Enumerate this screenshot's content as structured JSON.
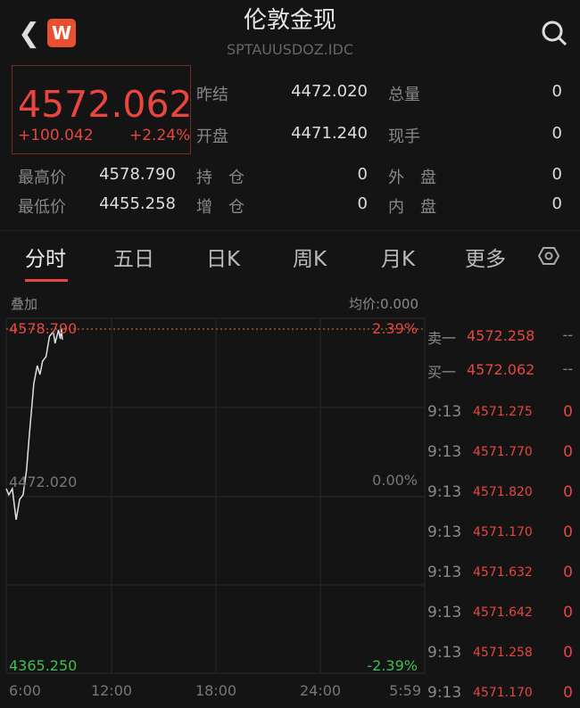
{
  "header": {
    "back_icon": "chevron-left-icon",
    "logo_text": "W",
    "title": "伦敦金现",
    "code": "SPTAUUSDOZ.IDC",
    "search_icon": "search-icon"
  },
  "quote": {
    "price": "4572.062",
    "change": "+100.042",
    "change_pct": "+2.24%",
    "stats": [
      {
        "label": "昨结",
        "value": "4472.020"
      },
      {
        "label": "总量",
        "value": "0"
      },
      {
        "label": "开盘",
        "value": "4471.240"
      },
      {
        "label": "现手",
        "value": "0"
      },
      {
        "label": "最高价",
        "value": "4578.790"
      },
      {
        "label": "持　仓",
        "value": "0"
      },
      {
        "label": "外　盘",
        "value": "0"
      },
      {
        "label": "最低价",
        "value": "4455.258"
      },
      {
        "label": "增　仓",
        "value": "0"
      },
      {
        "label": "内　盘",
        "value": "0"
      }
    ]
  },
  "tabs": [
    {
      "label": "分时",
      "active": true
    },
    {
      "label": "五日"
    },
    {
      "label": "日K"
    },
    {
      "label": "周K"
    },
    {
      "label": "月K"
    },
    {
      "label": "更多"
    }
  ],
  "settings_icon": "hexagon-settings-icon",
  "chart_data": {
    "type": "line",
    "overlay_label": "叠加",
    "avg_label": "均价:0.000",
    "y_labels": {
      "high": "4578.790",
      "mid": "4472.020",
      "low": "4365.250",
      "high_pct": "2.39%",
      "mid_pct": "0.00%",
      "low_pct": "-2.39%"
    },
    "ylim": [
      4365.25,
      4578.79
    ],
    "prev_close": 4472.02,
    "x_ticks": [
      "6:00",
      "12:00",
      "18:00",
      "24:00",
      "5:59"
    ],
    "grid": true,
    "series": [
      {
        "x": [
          "6:00",
          "6:09",
          "6:21",
          "6:34",
          "6:46",
          "6:58",
          "7:10",
          "7:19",
          "7:35",
          "7:47",
          "7:56",
          "8:05",
          "8:17",
          "8:29",
          "8:42",
          "8:48",
          "9:00",
          "9:06",
          "9:10",
          "9:13"
        ],
        "values": [
          4477.1,
          4473.2,
          4477.1,
          4457.3,
          4470.3,
          4473.2,
          4489.1,
          4510.1,
          4544.1,
          4555.5,
          4549.8,
          4558.3,
          4561.2,
          4574.2,
          4577.1,
          4569.7,
          4578.2,
          4572.5,
          4578.79,
          4572.06
        ]
      }
    ],
    "colors": {
      "line": "#e0e0e0",
      "up": "#e8463f",
      "down": "#3fbf55"
    }
  },
  "orderbook": {
    "asks": [
      {
        "label": "卖一",
        "price": "4572.258",
        "vol": "--"
      },
      {
        "label": "买一",
        "price": "4572.062",
        "vol": "--"
      }
    ],
    "ticks": [
      {
        "time": "9:13",
        "price": "4571.275",
        "vol": "0"
      },
      {
        "time": "9:13",
        "price": "4571.770",
        "vol": "0"
      },
      {
        "time": "9:13",
        "price": "4571.820",
        "vol": "0"
      },
      {
        "time": "9:13",
        "price": "4571.170",
        "vol": "0"
      },
      {
        "time": "9:13",
        "price": "4571.632",
        "vol": "0"
      },
      {
        "time": "9:13",
        "price": "4571.642",
        "vol": "0"
      },
      {
        "time": "9:13",
        "price": "4571.258",
        "vol": "0"
      },
      {
        "time": "9:13",
        "price": "4571.170",
        "vol": "0"
      }
    ]
  }
}
